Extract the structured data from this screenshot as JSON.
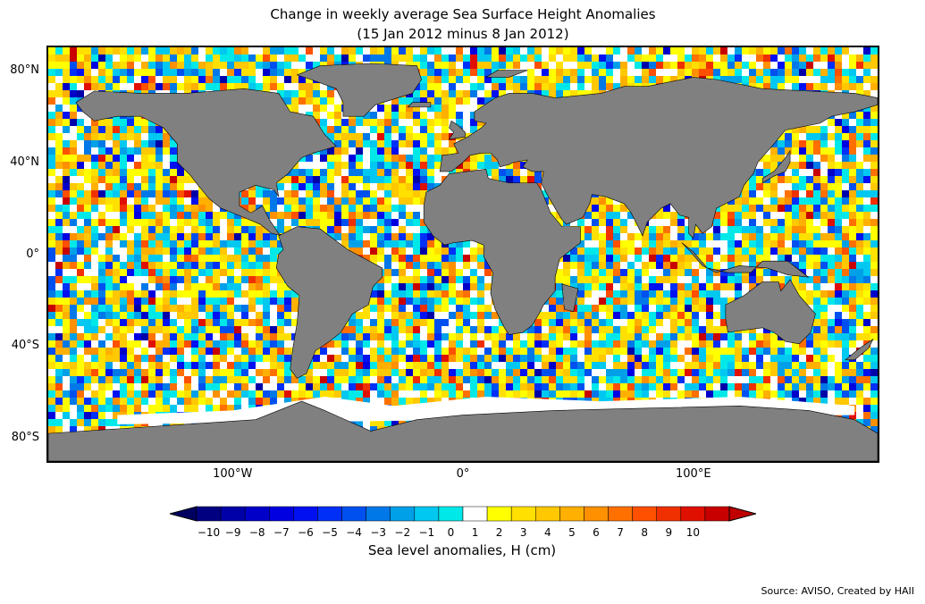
{
  "title": {
    "line1": "Change in weekly average Sea Surface Height Anomalies",
    "line2": "(15 Jan 2012 minus 8 Jan 2012)"
  },
  "map": {
    "projection": "equirectangular",
    "lon_range": [
      -180,
      180
    ],
    "lat_range": [
      -90,
      90
    ],
    "land_color": "#808080",
    "ice_color": "#ffffff",
    "lat_ticks": [
      {
        "value": 80,
        "label": "80°N"
      },
      {
        "value": 40,
        "label": "40°N"
      },
      {
        "value": 0,
        "label": "0°"
      },
      {
        "value": -40,
        "label": "40°S"
      },
      {
        "value": -80,
        "label": "80°S"
      }
    ],
    "lon_ticks": [
      {
        "value": -100,
        "label": "100°W"
      },
      {
        "value": 0,
        "label": "0°"
      },
      {
        "value": 100,
        "label": "100°E"
      }
    ]
  },
  "colorbar": {
    "label": "Sea level anomalies, H (cm)",
    "ticks": [
      "−10",
      "−9",
      "−8",
      "−7",
      "−6",
      "−5",
      "−4",
      "−3",
      "−2",
      "−1",
      "0",
      "1",
      "2",
      "3",
      "4",
      "5",
      "6",
      "7",
      "8",
      "9",
      "10"
    ],
    "colors": [
      "#000080",
      "#0000a8",
      "#0000c8",
      "#0000e0",
      "#0010f0",
      "#0030f8",
      "#0050f0",
      "#0078e8",
      "#00a0e8",
      "#00c8f0",
      "#00e8e8",
      "#ffffff",
      "#ffff00",
      "#ffe000",
      "#ffc800",
      "#ffb000",
      "#ff9000",
      "#ff7000",
      "#ff5000",
      "#f03000",
      "#e01000",
      "#c80000"
    ],
    "under_color": "#000060",
    "over_color": "#c00000"
  },
  "source": "Source: AVISO, Created by HAII"
}
